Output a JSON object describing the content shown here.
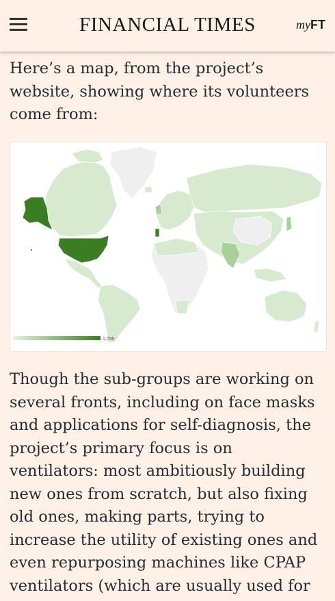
{
  "header": {
    "menu_icon": "hamburger-menu-icon",
    "masthead": "FINANCIAL TIMES",
    "myft_my": "my",
    "myft_ft": "FT"
  },
  "article": {
    "intro": "Here’s a map, from the project’s website, showing where its volunteers come from:",
    "body": "Though the sub-groups are working on several fronts, including on face masks and applications for self-diagnosis, the project’s primary focus is on ventilators: most ambitiously building new ones from scratch, but also fixing old ones, making parts, trying to increase the utility of existing ones and even repurposing machines like CPAP ventilators (which are usually used for"
  },
  "map": {
    "legend_max": "1,095",
    "colors": {
      "dark": "#3a7d22",
      "medium": "#a8d09a",
      "light": "#d6ead0",
      "none": "#efefef"
    }
  }
}
